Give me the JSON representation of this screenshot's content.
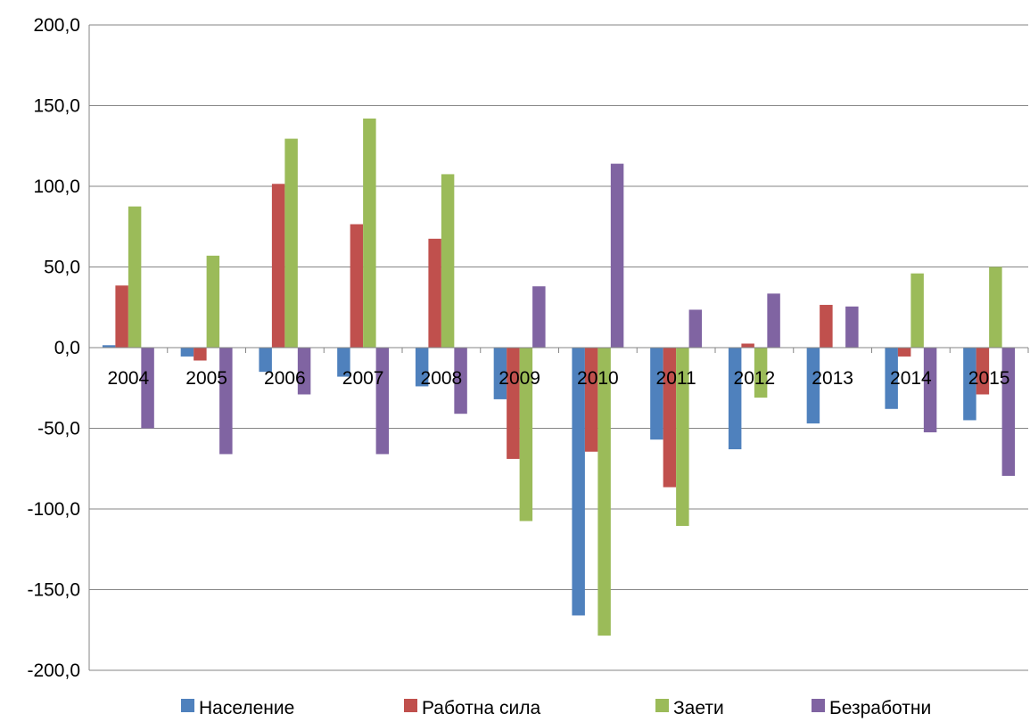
{
  "chart_data": {
    "type": "bar",
    "title": "",
    "xlabel": "",
    "ylabel": "",
    "categories": [
      "2004",
      "2005",
      "2006",
      "2007",
      "2008",
      "2009",
      "2010",
      "2011",
      "2012",
      "2013",
      "2014",
      "2015"
    ],
    "series": [
      {
        "name": "Население",
        "color": "#4f81bd",
        "values": [
          1.5,
          -5.5,
          -15,
          -18,
          -24,
          -32,
          -166,
          -57,
          -63,
          -47,
          -38,
          -45
        ]
      },
      {
        "name": "Работна сила",
        "color": "#c0504d",
        "values": [
          38.5,
          -8,
          101.5,
          76.5,
          67.5,
          -69,
          -64.5,
          -86.5,
          2.5,
          26.5,
          -5.5,
          -29
        ]
      },
      {
        "name": "Заети",
        "color": "#9bbb59",
        "values": [
          87.5,
          57,
          129.5,
          142,
          107.5,
          -107.5,
          -178.5,
          -110.5,
          -31,
          0,
          46,
          50
        ]
      },
      {
        "name": "Безработни",
        "color": "#8064a2",
        "values": [
          -50,
          -66,
          -29,
          -66,
          -41,
          38,
          114,
          23.5,
          33.5,
          25.5,
          -52.5,
          -79.5
        ]
      }
    ],
    "yticks": [
      "200,0",
      "150,0",
      "100,0",
      "50,0",
      "0,0",
      "-50,0",
      "-100,0",
      "-150,0",
      "-200,0"
    ],
    "ylim": [
      -200,
      200
    ],
    "ystep": 50,
    "grid": true,
    "legend_position": "bottom"
  }
}
